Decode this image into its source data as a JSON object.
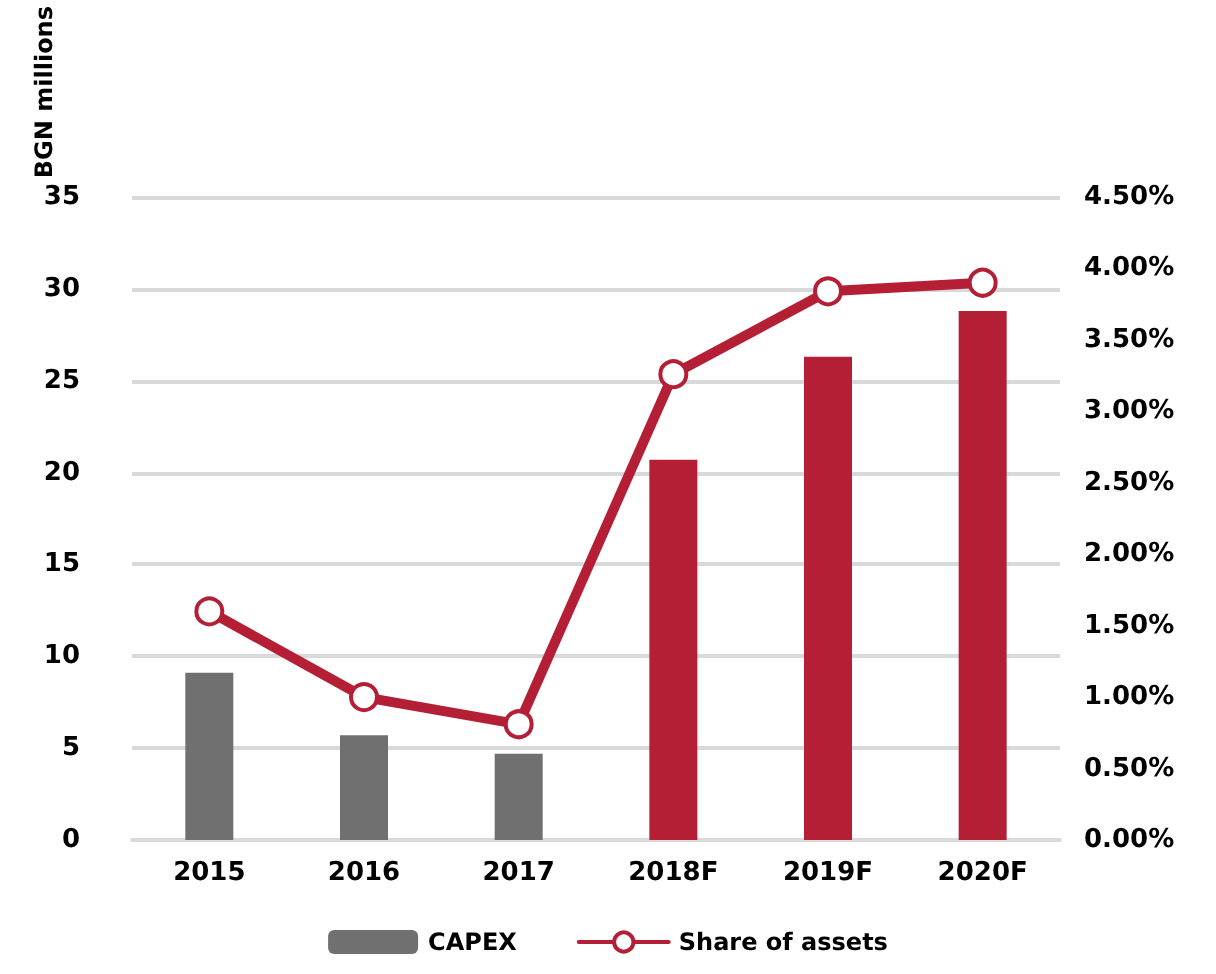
{
  "chart_data": {
    "type": "bar",
    "ylabel": "BGN millions",
    "categories": [
      "2015",
      "2016",
      "2017",
      "2018F",
      "2019F",
      "2020F"
    ],
    "series": [
      {
        "name": "CAPEX",
        "colors": [
          "#707070",
          "#707070",
          "#707070",
          "#b51f36",
          "#b51f36",
          "#b51f36"
        ],
        "values": [
          9.1,
          5.7,
          4.7,
          20.7,
          26.3,
          28.8
        ]
      },
      {
        "name": "Share of assets",
        "type": "line",
        "axis": "y2",
        "color": "#b51f36",
        "values": [
          1.6,
          1.0,
          0.81,
          3.26,
          3.84,
          3.9
        ]
      }
    ],
    "ylim": [
      0,
      35
    ],
    "yticks": [
      0,
      5,
      10,
      15,
      20,
      25,
      30,
      35
    ],
    "y2lim": [
      0,
      4.5
    ],
    "y2ticks": [
      {
        "value": 0,
        "label": "0.00%"
      },
      {
        "value": 0.5,
        "label": "0.50%"
      },
      {
        "value": 1,
        "label": "1.00%"
      },
      {
        "value": 1.5,
        "label": "1.50%"
      },
      {
        "value": 2,
        "label": "2.00%"
      },
      {
        "value": 2.5,
        "label": "2.50%"
      },
      {
        "value": 3,
        "label": "3.00%"
      },
      {
        "value": 3.5,
        "label": "3.50%"
      },
      {
        "value": 4,
        "label": "4.00%"
      },
      {
        "value": 4.5,
        "label": "4.50%"
      }
    ],
    "grid": "y",
    "legend": "bottom",
    "marker": "circle",
    "line_style": "solid"
  }
}
